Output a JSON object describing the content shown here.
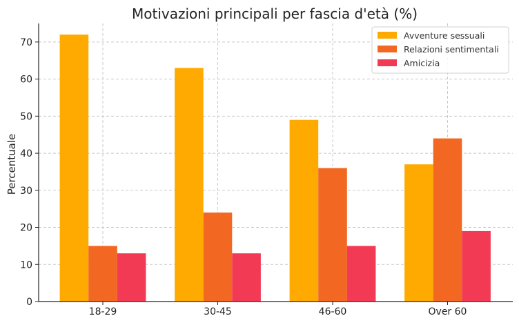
{
  "chart_data": {
    "type": "bar",
    "title": "Motivazioni principali per fascia d'età (%)",
    "xlabel": "",
    "ylabel": "Percentuale",
    "categories": [
      "18-29",
      "30-45",
      "46-60",
      "Over 60"
    ],
    "series": [
      {
        "name": "Avventure sessuali",
        "values": [
          72,
          63,
          49,
          37
        ],
        "color": "#FFAA00"
      },
      {
        "name": "Relazioni sentimentali",
        "values": [
          15,
          24,
          36,
          44
        ],
        "color": "#F26722"
      },
      {
        "name": "Amicizia",
        "values": [
          13,
          13,
          15,
          19
        ],
        "color": "#F23A55"
      }
    ],
    "ylim": [
      0,
      75
    ],
    "yticks": [
      0,
      10,
      20,
      30,
      40,
      50,
      60,
      70
    ],
    "grid": true,
    "legend_position": "top-right"
  }
}
